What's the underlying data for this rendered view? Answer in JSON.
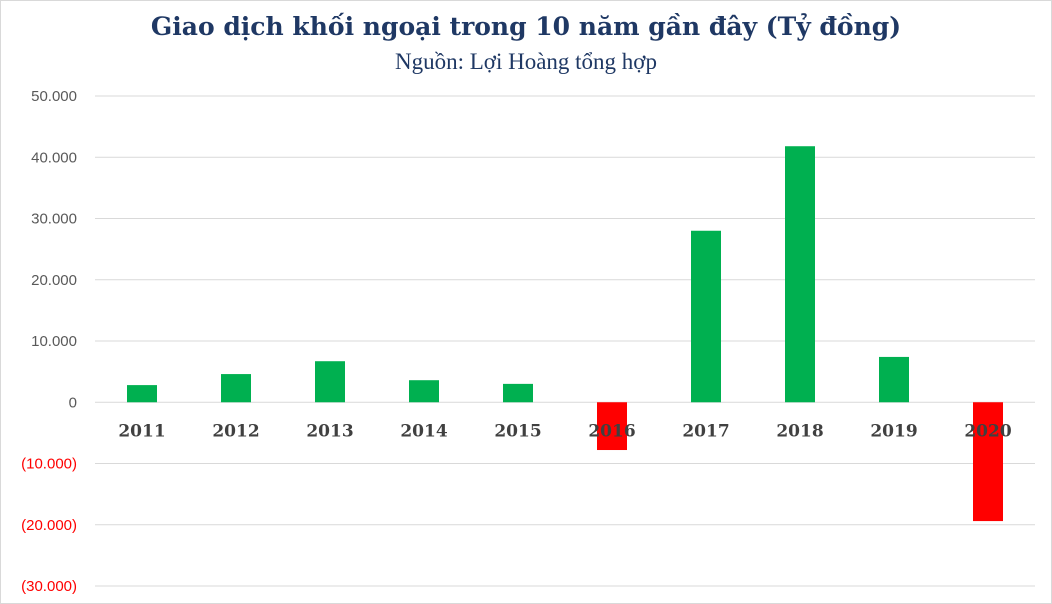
{
  "chart_data": {
    "type": "bar",
    "title": "Giao dịch khối ngoại trong 10 năm gần đây (Tỷ đồng)",
    "subtitle": "Nguồn: Lợi Hoàng tổng hợp",
    "categories": [
      "2011",
      "2012",
      "2013",
      "2014",
      "2015",
      "2016",
      "2017",
      "2018",
      "2019",
      "2020"
    ],
    "values": [
      2800,
      4600,
      6700,
      3600,
      3000,
      -7800,
      28000,
      41800,
      7400,
      -19400
    ],
    "ylim": [
      -30000,
      50000
    ],
    "yticks": [
      50000,
      40000,
      30000,
      20000,
      10000,
      0,
      -10000,
      -20000,
      -30000
    ],
    "ytick_labels": [
      "50.000",
      "40.000",
      "30.000",
      "20.000",
      "10.000",
      "0",
      "(10.000)",
      "(20.000)",
      "(30.000)"
    ],
    "grid": true,
    "colors": {
      "positive": "#00b050",
      "negative": "#ff0000",
      "negative_label": "#ff0000",
      "label": "#595959",
      "grid": "#d9d9d9"
    }
  }
}
